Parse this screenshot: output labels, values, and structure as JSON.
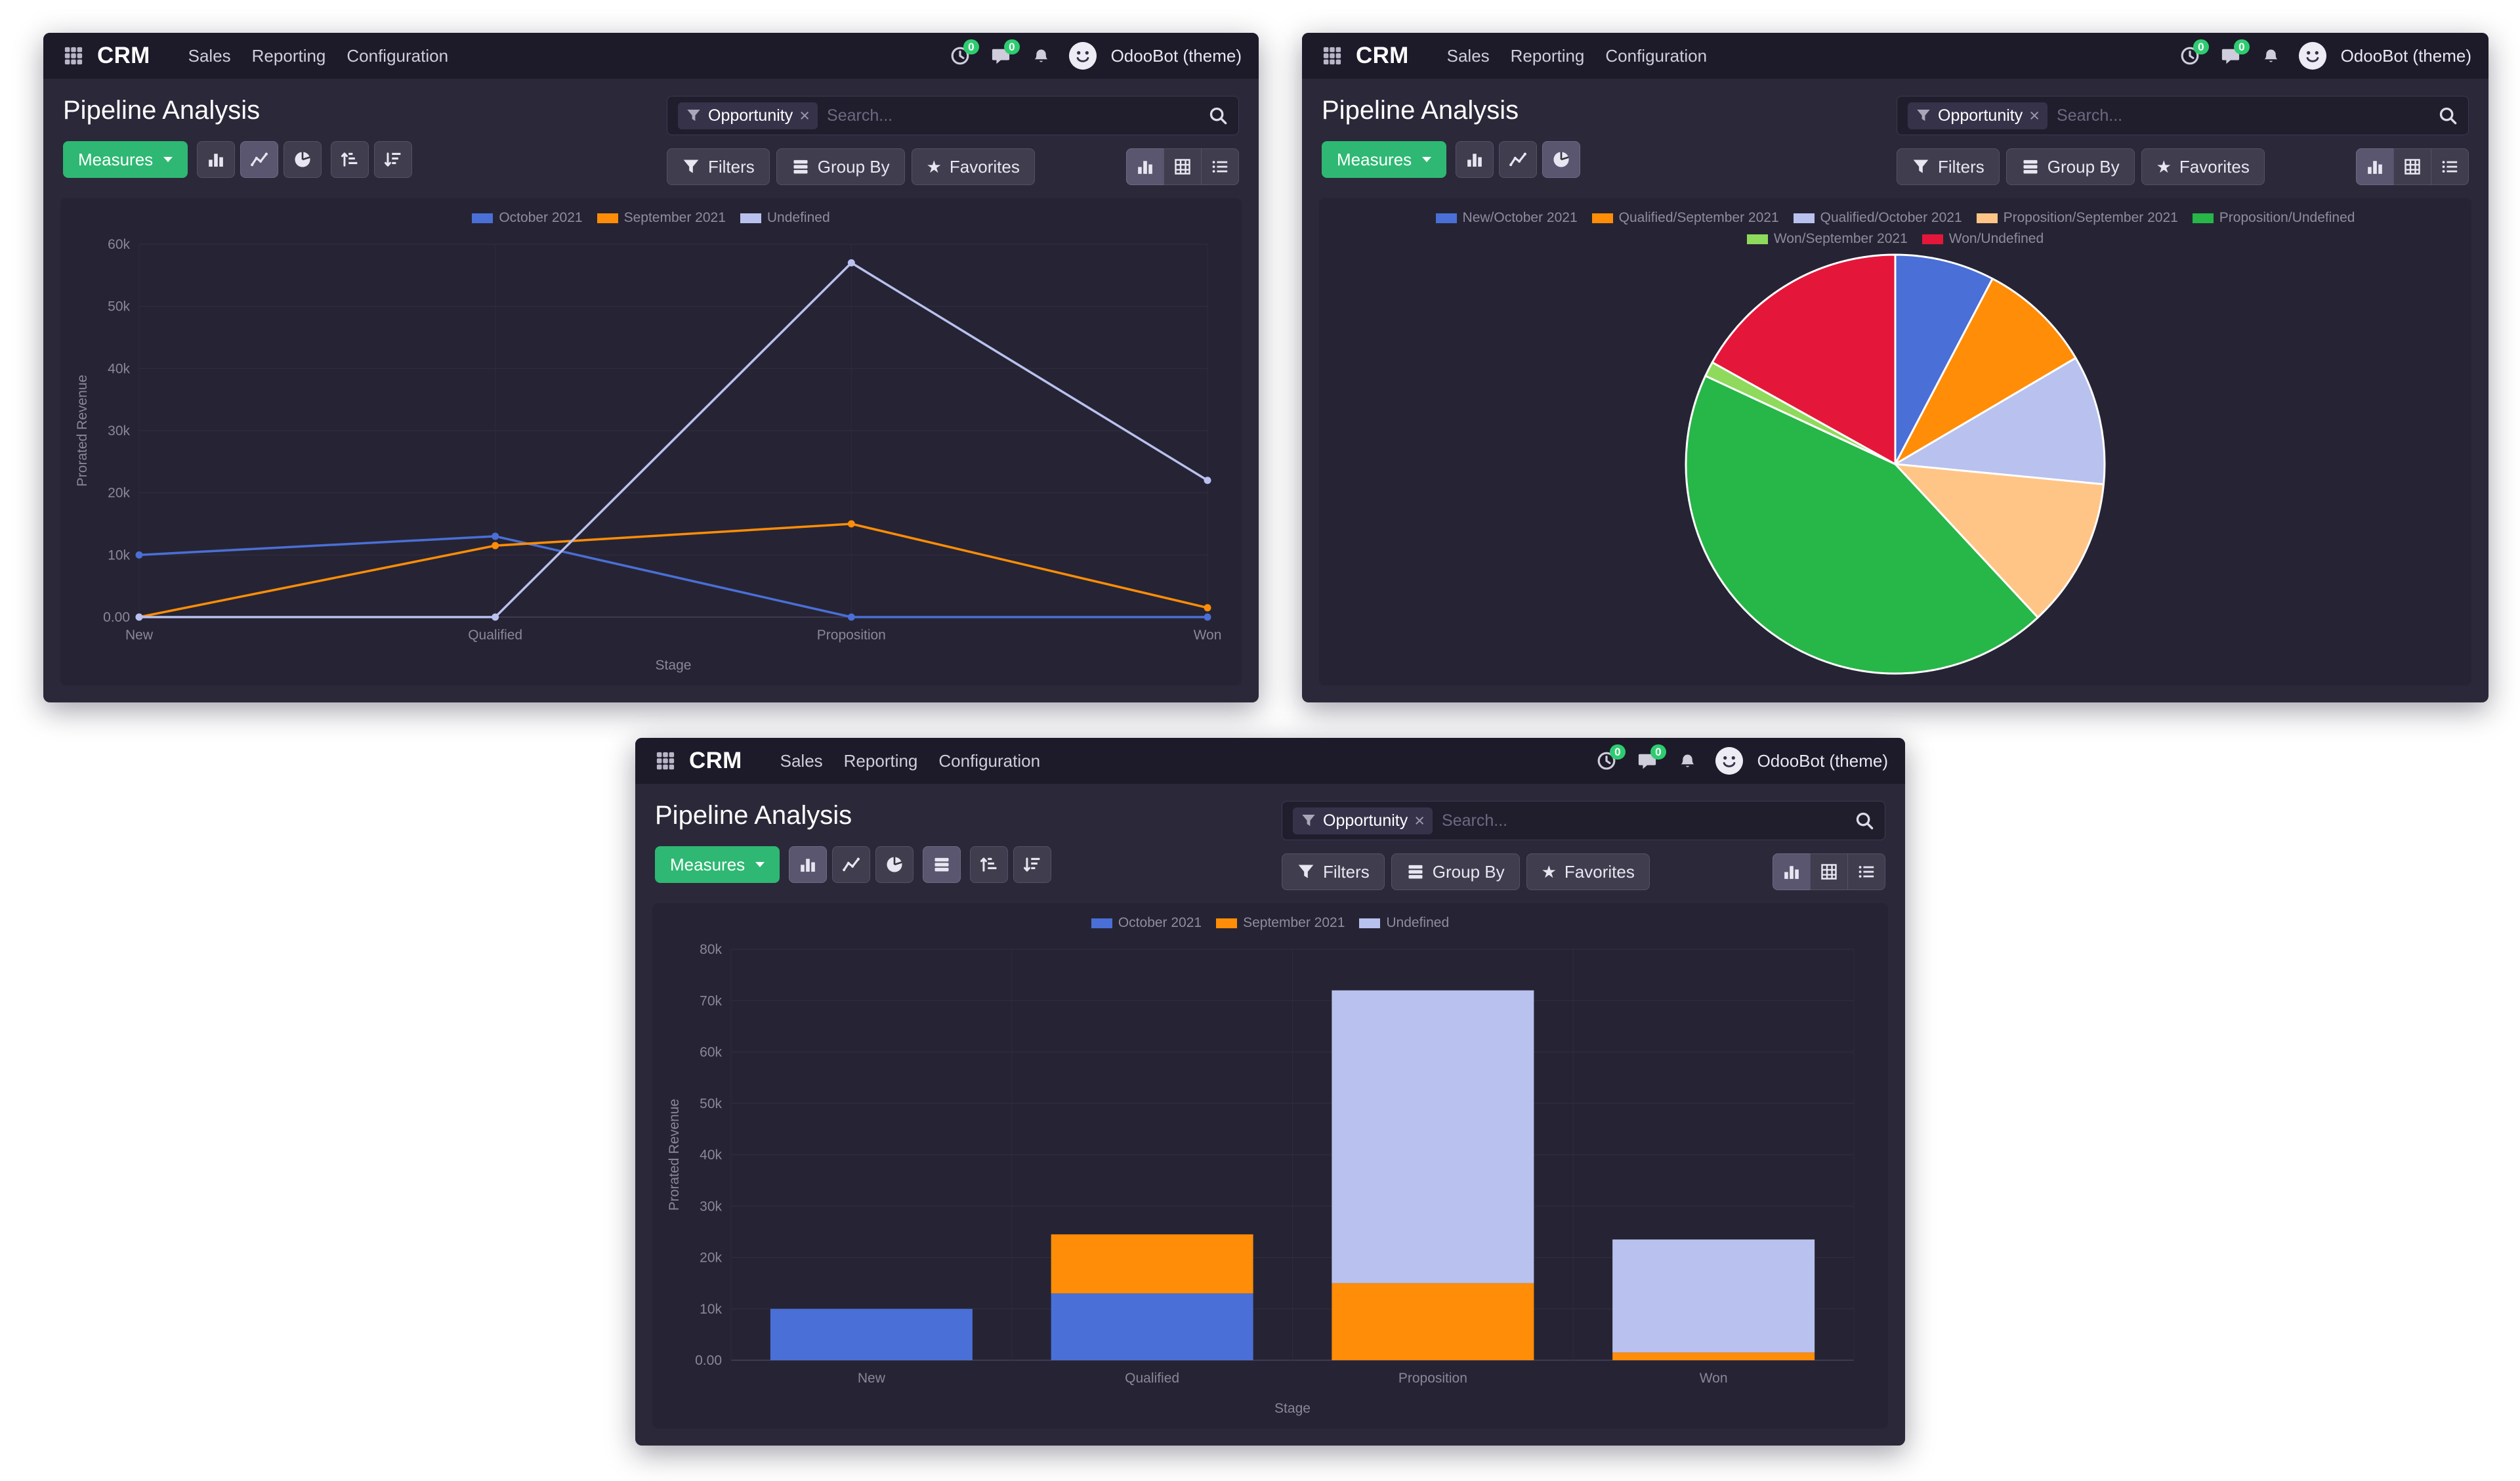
{
  "app": {
    "name": "CRM",
    "menus": [
      "Sales",
      "Reporting",
      "Configuration"
    ],
    "user_name": "OdooBot (theme)",
    "activities_badge": "0",
    "messages_badge": "0"
  },
  "page": {
    "title": "Pipeline Analysis"
  },
  "search": {
    "facet_label": "Opportunity",
    "placeholder": "Search...",
    "remove_facet_glyph": "×"
  },
  "toolbar": {
    "measures_label": "Measures",
    "filters_label": "Filters",
    "group_by_label": "Group By",
    "favorites_label": "Favorites",
    "favorites_star_glyph": "★"
  },
  "colors": {
    "accent_green": "#2eb873",
    "navbar_bg": "#1d1b29",
    "window_bg": "#2b2839",
    "chart_bg": "#262434",
    "series_blue": "#4a6fd6",
    "series_orange": "#ff8d07",
    "series_lavender": "#b9c1ee",
    "series_peach": "#ffc586",
    "series_green": "#27b648",
    "series_light_green": "#8fd95c",
    "series_red": "#e4173a"
  },
  "chart_data": [
    {
      "type": "line",
      "title": "Pipeline Analysis",
      "xlabel": "Stage",
      "ylabel": "Prorated Revenue",
      "categories": [
        "New",
        "Qualified",
        "Proposition",
        "Won"
      ],
      "series": [
        {
          "name": "October 2021",
          "color": "#4a6fd6",
          "values": [
            10000,
            13000,
            0,
            0
          ]
        },
        {
          "name": "September 2021",
          "color": "#ff8d07",
          "values": [
            0,
            11500,
            15000,
            1500
          ]
        },
        {
          "name": "Undefined",
          "color": "#b9c1ee",
          "values": [
            0,
            0,
            57000,
            22000
          ]
        }
      ],
      "ymax": 60000,
      "yticks": [
        {
          "value": 0,
          "label": "0.00"
        },
        {
          "value": 10000,
          "label": "10k"
        },
        {
          "value": 20000,
          "label": "20k"
        },
        {
          "value": 30000,
          "label": "30k"
        },
        {
          "value": 40000,
          "label": "40k"
        },
        {
          "value": 50000,
          "label": "50k"
        },
        {
          "value": 60000,
          "label": "60k"
        }
      ],
      "legend_position": "top",
      "grid": true
    },
    {
      "type": "pie",
      "title": "Pipeline Analysis",
      "slices": [
        {
          "label": "New/October 2021",
          "color": "#4a6fd6",
          "value": 10000
        },
        {
          "label": "Qualified/September 2021",
          "color": "#ff8d07",
          "value": 11500
        },
        {
          "label": "Qualified/October 2021",
          "color": "#b9c1ee",
          "value": 13000
        },
        {
          "label": "Proposition/September 2021",
          "color": "#ffc586",
          "value": 15000
        },
        {
          "label": "Proposition/Undefined",
          "color": "#27b648",
          "value": 57000
        },
        {
          "label": "Won/September 2021",
          "color": "#8fd95c",
          "value": 1500
        },
        {
          "label": "Won/Undefined",
          "color": "#e4173a",
          "value": 22000
        }
      ],
      "legend_position": "top"
    },
    {
      "type": "bar",
      "stacked": true,
      "title": "Pipeline Analysis",
      "xlabel": "Stage",
      "ylabel": "Prorated Revenue",
      "categories": [
        "New",
        "Qualified",
        "Proposition",
        "Won"
      ],
      "series": [
        {
          "name": "October 2021",
          "color": "#4a6fd6",
          "values": [
            10000,
            13000,
            0,
            0
          ]
        },
        {
          "name": "September 2021",
          "color": "#ff8d07",
          "values": [
            0,
            11500,
            15000,
            1500
          ]
        },
        {
          "name": "Undefined",
          "color": "#b9c1ee",
          "values": [
            0,
            0,
            57000,
            22000
          ]
        }
      ],
      "ymax": 80000,
      "yticks": [
        {
          "value": 0,
          "label": "0.00"
        },
        {
          "value": 10000,
          "label": "10k"
        },
        {
          "value": 20000,
          "label": "20k"
        },
        {
          "value": 30000,
          "label": "30k"
        },
        {
          "value": 40000,
          "label": "40k"
        },
        {
          "value": 50000,
          "label": "50k"
        },
        {
          "value": 60000,
          "label": "60k"
        },
        {
          "value": 70000,
          "label": "70k"
        },
        {
          "value": 80000,
          "label": "80k"
        }
      ],
      "legend_position": "top",
      "grid": true
    }
  ]
}
